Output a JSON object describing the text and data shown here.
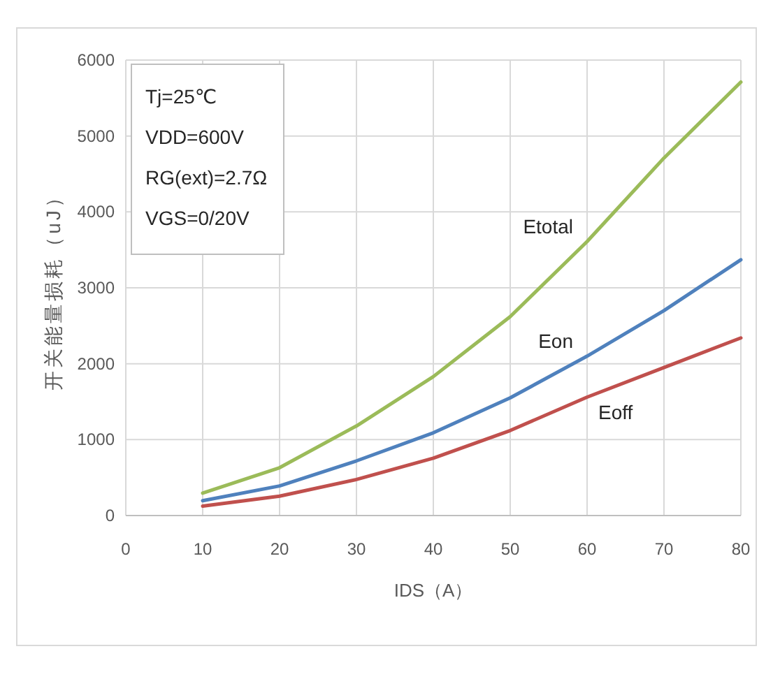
{
  "chart_data": {
    "type": "line",
    "xlabel": "IDS（A）",
    "ylabel": "开关能量损耗（uJ）",
    "annotations": [
      "Tj=25℃",
      "VDD=600V",
      "RG(ext)=2.7Ω",
      "VGS=0/20V"
    ],
    "x": [
      10,
      20,
      30,
      40,
      50,
      60,
      70,
      80
    ],
    "series": [
      {
        "name": "Etotal",
        "color": "#9bbb59",
        "values": [
          295,
          630,
          1180,
          1830,
          2620,
          3610,
          4710,
          5710
        ]
      },
      {
        "name": "Eon",
        "color": "#4f81bd",
        "values": [
          195,
          390,
          720,
          1090,
          1550,
          2100,
          2700,
          3370
        ]
      },
      {
        "name": "Eoff",
        "color": "#c0504d",
        "values": [
          125,
          255,
          475,
          755,
          1120,
          1560,
          1950,
          2340
        ]
      }
    ],
    "xlim": [
      0,
      80
    ],
    "ylim": [
      0,
      6000
    ],
    "xticks": [
      0,
      10,
      20,
      30,
      40,
      50,
      60,
      70,
      80
    ],
    "yticks": [
      0,
      1000,
      2000,
      3000,
      4000,
      5000,
      6000
    ],
    "grid": true
  }
}
